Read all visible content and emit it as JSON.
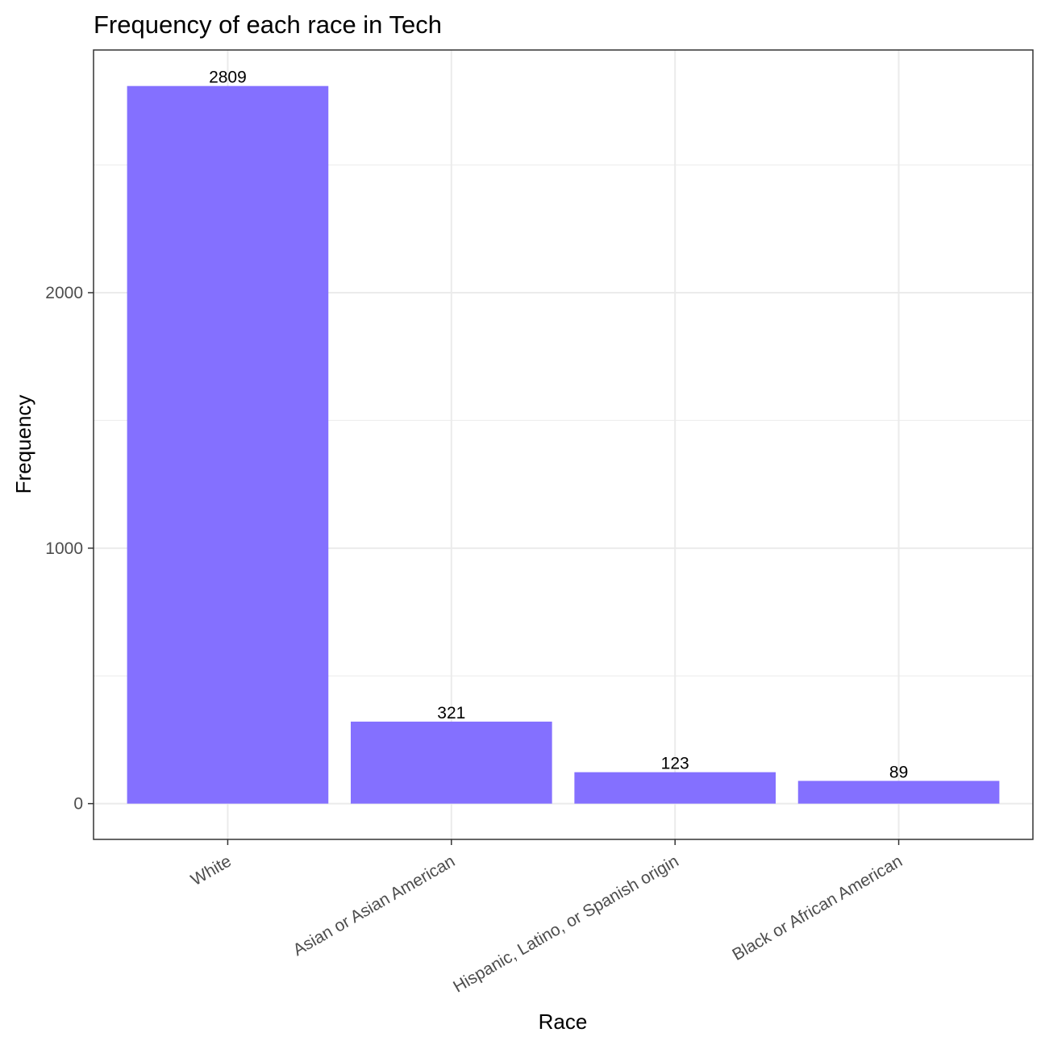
{
  "chart_data": {
    "type": "bar",
    "title": "Frequency of each race in Tech",
    "xlabel": "Race",
    "ylabel": "Frequency",
    "categories": [
      "White",
      "Asian or Asian American",
      "Hispanic, Latino, or Spanish origin",
      "Black or African American"
    ],
    "values": [
      2809,
      321,
      123,
      89
    ],
    "data_labels": [
      "2809",
      "321",
      "123",
      "89"
    ],
    "ylim": [
      -140,
      2950
    ],
    "yticks": [
      0,
      1000,
      2000
    ],
    "ytick_labels": [
      "0",
      "1000",
      "2000"
    ],
    "y_minor_gridlines": [
      500,
      1500,
      2500
    ],
    "grid": true,
    "legend": "none",
    "bar_color": "#8470FF",
    "gridline_color": "#EBEBEB",
    "panel_border_color": "#333333"
  }
}
